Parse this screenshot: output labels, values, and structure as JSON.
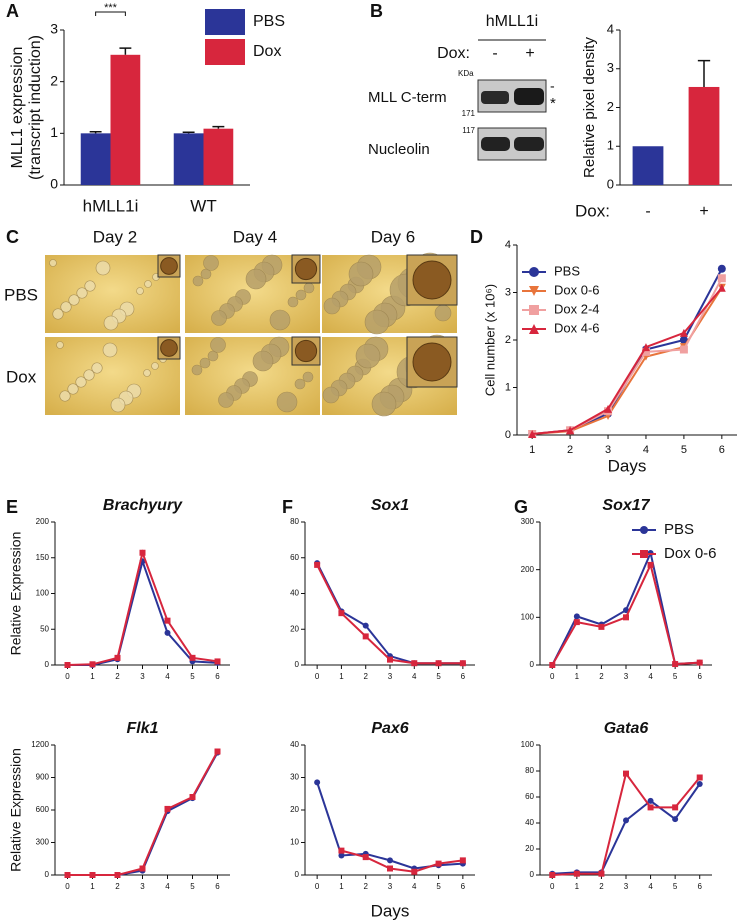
{
  "panel_labels": [
    "A",
    "B",
    "C",
    "D",
    "E",
    "F",
    "G"
  ],
  "blot": {
    "title": "hMLL1i",
    "dox_label": "Dox:",
    "lanes": [
      "-",
      "+"
    ],
    "unit": "KDa",
    "rows": [
      "MLL C-term",
      "Nucleolin"
    ],
    "markers": [
      "171",
      "117"
    ],
    "band_marks": [
      "-",
      "*"
    ]
  },
  "micrographs": {
    "columns": [
      "Day 2",
      "Day 4",
      "Day 6"
    ],
    "rows": [
      "PBS",
      "Dox"
    ]
  },
  "chart_data": [
    {
      "type": "bar",
      "ylabel": [
        "MLL1 expression",
        "(transcript induction)"
      ],
      "categories": [
        "hMLL1i",
        "WT"
      ],
      "series": [
        {
          "name": "PBS",
          "color": "#2b3598",
          "values": [
            1.0,
            1.0
          ],
          "errors": [
            0.03,
            0.02
          ]
        },
        {
          "name": "Dox",
          "color": "#d7263d",
          "values": [
            2.52,
            1.09
          ],
          "errors": [
            0.13,
            0.04
          ]
        }
      ],
      "annotation": "***",
      "ylim": [
        0,
        3
      ],
      "yticks": [
        0,
        1,
        2,
        3
      ],
      "legend": "upper right"
    },
    {
      "type": "bar",
      "ylabel": "Relative pixel density",
      "xlabel": "Dox:",
      "categories": [
        "-",
        "+"
      ],
      "series": [
        {
          "values": [
            1.0,
            2.53
          ],
          "errors": [
            null,
            0.68
          ]
        }
      ],
      "colors": [
        "#2b3598",
        "#d7263d"
      ],
      "ylim": [
        0,
        4
      ],
      "yticks": [
        0,
        1,
        2,
        3,
        4
      ]
    },
    {
      "type": "line",
      "ylabel": "Cell number (x 10⁶)",
      "xlabel": "Days",
      "x": [
        1,
        2,
        3,
        4,
        5,
        6
      ],
      "series": [
        {
          "name": "PBS",
          "color": "#2b3598",
          "marker": "circle",
          "values": [
            0.02,
            0.1,
            0.45,
            1.8,
            2.0,
            3.5
          ]
        },
        {
          "name": "Dox 0-6",
          "color": "#e8743b",
          "marker": "triangle-down",
          "values": [
            0.02,
            0.08,
            0.4,
            1.65,
            1.85,
            3.1
          ]
        },
        {
          "name": "Dox 2-4",
          "color": "#f0a0a0",
          "marker": "square",
          "values": [
            0.02,
            0.1,
            0.5,
            1.75,
            1.8,
            3.3
          ]
        },
        {
          "name": "Dox 4-6",
          "color": "#d7263d",
          "marker": "triangle-up",
          "values": [
            0.02,
            0.1,
            0.55,
            1.85,
            2.15,
            3.1
          ]
        }
      ],
      "xlim": [
        0.6,
        6.4
      ],
      "xticks": [
        1,
        2,
        3,
        4,
        5,
        6
      ],
      "ylim": [
        0,
        4
      ],
      "yticks": [
        0,
        1,
        2,
        3,
        4
      ],
      "legend": "upper left"
    },
    {
      "type": "line",
      "title": "Brachyury",
      "ylabel": "Relative Expression",
      "x": [
        0,
        1,
        2,
        3,
        4,
        5,
        6
      ],
      "series": [
        {
          "name": "PBS",
          "color": "#2b3598",
          "marker": "circle",
          "values": [
            0,
            0,
            8,
            145,
            45,
            5,
            3
          ]
        },
        {
          "name": "Dox 0-6",
          "color": "#d7263d",
          "marker": "square",
          "values": [
            0,
            1,
            10,
            157,
            62,
            10,
            5
          ]
        }
      ],
      "xlim": [
        -0.5,
        6.5
      ],
      "xticks": [
        0,
        1,
        2,
        3,
        4,
        5,
        6
      ],
      "ylim": [
        0,
        200
      ],
      "yticks": [
        0,
        50,
        100,
        150,
        200
      ]
    },
    {
      "type": "line",
      "title": "Sox1",
      "x": [
        0,
        1,
        2,
        3,
        4,
        5,
        6
      ],
      "series": [
        {
          "name": "PBS",
          "color": "#2b3598",
          "marker": "circle",
          "values": [
            57,
            30,
            22,
            5,
            1,
            1,
            1
          ]
        },
        {
          "name": "Dox 0-6",
          "color": "#d7263d",
          "marker": "square",
          "values": [
            56,
            29,
            16,
            3,
            1,
            1,
            1
          ]
        }
      ],
      "xlim": [
        -0.5,
        6.5
      ],
      "xticks": [
        0,
        1,
        2,
        3,
        4,
        5,
        6
      ],
      "ylim": [
        0,
        80
      ],
      "yticks": [
        0,
        20,
        40,
        60,
        80
      ]
    },
    {
      "type": "line",
      "title": "Sox17",
      "x": [
        0,
        1,
        2,
        3,
        4,
        5,
        6
      ],
      "series": [
        {
          "name": "PBS",
          "color": "#2b3598",
          "marker": "circle",
          "values": [
            0,
            102,
            85,
            115,
            235,
            2,
            5
          ]
        },
        {
          "name": "Dox 0-6",
          "color": "#d7263d",
          "marker": "square",
          "values": [
            0,
            90,
            80,
            100,
            210,
            2,
            5
          ]
        }
      ],
      "xlim": [
        -0.5,
        6.5
      ],
      "xticks": [
        0,
        1,
        2,
        3,
        4,
        5,
        6
      ],
      "ylim": [
        0,
        300
      ],
      "yticks": [
        0,
        100,
        200,
        300
      ],
      "legend": "upper right"
    },
    {
      "type": "line",
      "title": "Flk1",
      "ylabel": "Relative Expression",
      "x": [
        0,
        1,
        2,
        3,
        4,
        5,
        6
      ],
      "series": [
        {
          "name": "PBS",
          "color": "#2b3598",
          "marker": "circle",
          "values": [
            0,
            0,
            0,
            40,
            590,
            710,
            1130
          ]
        },
        {
          "name": "Dox 0-6",
          "color": "#d7263d",
          "marker": "square",
          "values": [
            0,
            0,
            0,
            60,
            610,
            720,
            1140
          ]
        }
      ],
      "xlim": [
        -0.5,
        6.5
      ],
      "xticks": [
        0,
        1,
        2,
        3,
        4,
        5,
        6
      ],
      "ylim": [
        0,
        1200
      ],
      "yticks": [
        0,
        300,
        600,
        900,
        1200
      ]
    },
    {
      "type": "line",
      "title": "Pax6",
      "xlabel": "Days",
      "x": [
        0,
        1,
        2,
        3,
        4,
        5,
        6
      ],
      "series": [
        {
          "name": "PBS",
          "color": "#2b3598",
          "marker": "circle",
          "values": [
            28.5,
            6,
            6.5,
            4.5,
            2,
            3,
            3.5
          ]
        },
        {
          "name": "Dox 0-6",
          "color": "#d7263d",
          "marker": "square",
          "values": [
            null,
            7.5,
            5.5,
            2,
            1,
            3.5,
            4.5
          ]
        }
      ],
      "xlim": [
        -0.5,
        6.5
      ],
      "xticks": [
        0,
        1,
        2,
        3,
        4,
        5,
        6
      ],
      "ylim": [
        0,
        40
      ],
      "yticks": [
        0,
        10,
        20,
        30,
        40
      ]
    },
    {
      "type": "line",
      "title": "Gata6",
      "x": [
        0,
        1,
        2,
        3,
        4,
        5,
        6
      ],
      "series": [
        {
          "name": "PBS",
          "color": "#2b3598",
          "marker": "circle",
          "values": [
            1,
            2,
            2,
            42,
            57,
            43,
            70
          ]
        },
        {
          "name": "Dox 0-6",
          "color": "#d7263d",
          "marker": "square",
          "values": [
            0,
            1,
            1,
            78,
            52,
            52,
            75
          ]
        }
      ],
      "xlim": [
        -0.5,
        6.5
      ],
      "xticks": [
        0,
        1,
        2,
        3,
        4,
        5,
        6
      ],
      "ylim": [
        0,
        100
      ],
      "yticks": [
        0,
        20,
        40,
        60,
        80,
        100
      ]
    }
  ]
}
